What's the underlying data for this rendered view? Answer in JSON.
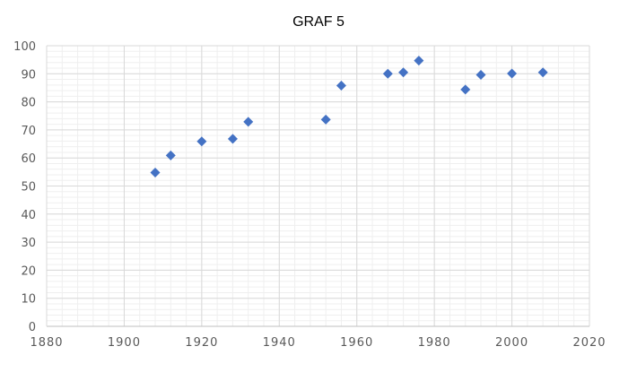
{
  "chart_data": {
    "type": "scatter",
    "title": "GRAF 5",
    "xlabel": "",
    "ylabel": "",
    "xlim": [
      1880,
      2020
    ],
    "ylim": [
      0,
      100
    ],
    "x_ticks": [
      1880,
      1900,
      1920,
      1940,
      1960,
      1980,
      2000,
      2020
    ],
    "y_ticks": [
      0,
      10,
      20,
      30,
      40,
      50,
      60,
      70,
      80,
      90,
      100
    ],
    "grid": true,
    "minor_grid": true,
    "legend": "none",
    "marker": "diamond",
    "colors": {
      "marker": "#4472C4",
      "major_grid": "#d9d9d9",
      "minor_grid": "#efefef",
      "tick_label": "#595959"
    },
    "series": [
      {
        "x": [
          1908,
          1912,
          1920,
          1928,
          1932,
          1952,
          1956,
          1968,
          1972,
          1976,
          1988,
          1992,
          2000,
          2008
        ],
        "y": [
          54.8,
          60.9,
          65.9,
          66.8,
          72.9,
          73.7,
          85.8,
          90.0,
          90.5,
          94.7,
          84.4,
          89.6,
          90.1,
          90.5
        ]
      }
    ]
  }
}
